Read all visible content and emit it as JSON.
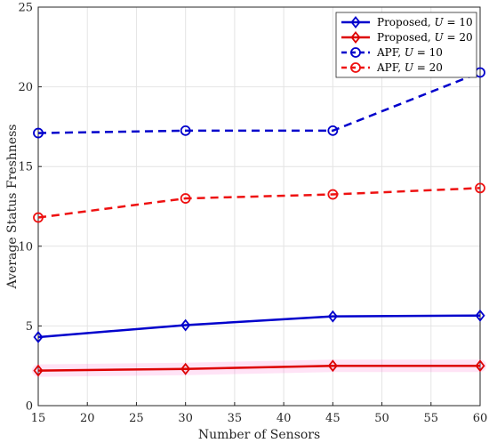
{
  "chart_data": {
    "type": "line",
    "title": "",
    "xlabel": "Number of Sensors",
    "ylabel": "Average Status Freshness",
    "xlim": [
      15,
      60
    ],
    "ylim": [
      0,
      25
    ],
    "xticks": [
      15,
      20,
      25,
      30,
      35,
      40,
      45,
      50,
      55,
      60
    ],
    "yticks": [
      0,
      5,
      10,
      15,
      20,
      25
    ],
    "grid": true,
    "legend_position": "top-right",
    "series": [
      {
        "name": "Proposed, U = 10",
        "legend_prefix": "Proposed, ",
        "legend_var": "U",
        "legend_suffix": " = 10",
        "x": [
          15,
          30,
          45,
          60
        ],
        "y": [
          4.3,
          5.05,
          5.6,
          5.65
        ],
        "color": "#0000cc",
        "dash": "solid",
        "marker": "diamond"
      },
      {
        "name": "Proposed, U = 20",
        "legend_prefix": "Proposed, ",
        "legend_var": "U",
        "legend_suffix": " = 20",
        "x": [
          15,
          30,
          45,
          60
        ],
        "y": [
          2.2,
          2.3,
          2.5,
          2.5
        ],
        "color": "#dd0000",
        "dash": "solid",
        "marker": "diamond"
      },
      {
        "name": "APF, U = 10",
        "legend_prefix": "APF, ",
        "legend_var": "U",
        "legend_suffix": " = 10",
        "x": [
          15,
          30,
          45,
          60
        ],
        "y": [
          17.1,
          17.25,
          17.25,
          20.9
        ],
        "color": "#0000cc",
        "dash": "dashed",
        "marker": "circle"
      },
      {
        "name": "APF, U = 20",
        "legend_prefix": "APF, ",
        "legend_var": "U",
        "legend_suffix": " = 20",
        "x": [
          15,
          30,
          45,
          60
        ],
        "y": [
          11.8,
          13.0,
          13.25,
          13.65
        ],
        "color": "#ee1111",
        "dash": "dashed",
        "marker": "circle"
      }
    ]
  }
}
